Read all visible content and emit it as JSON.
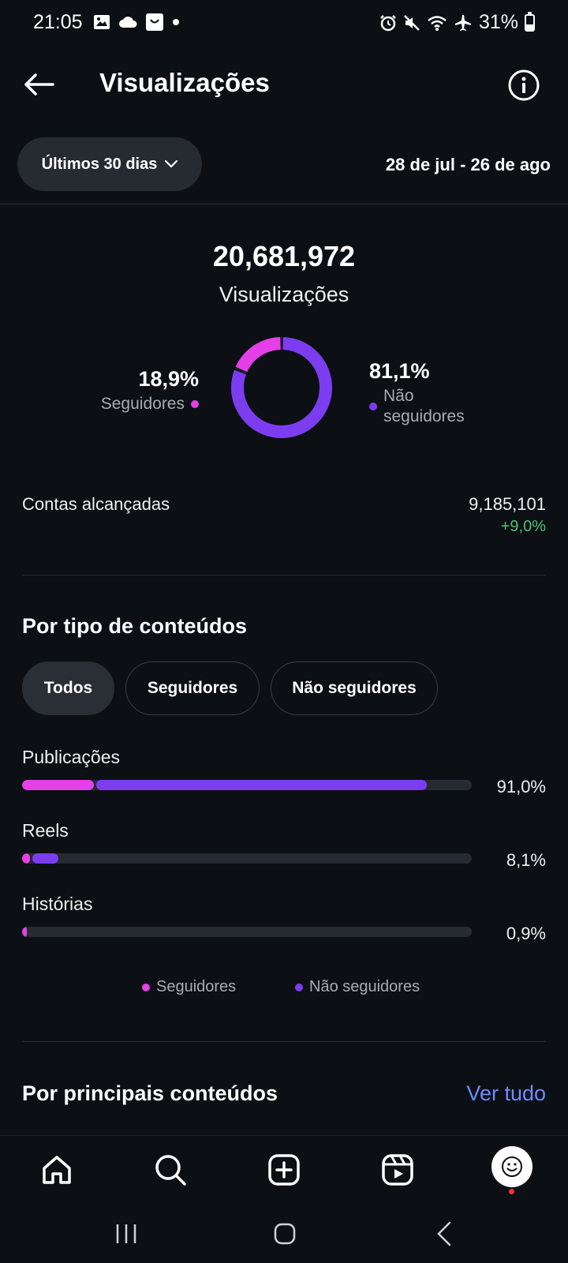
{
  "status_bar": {
    "time": "21:05",
    "battery": "31%",
    "left_icons": [
      "image-icon",
      "cloud-icon",
      "shopping-bag-icon",
      "dot-icon"
    ],
    "right_icons": [
      "alarm-icon",
      "mute-icon",
      "wifi-icon",
      "airplane-icon",
      "battery-icon"
    ]
  },
  "header": {
    "title": "Visualizações",
    "back_icon": "arrow-left-icon",
    "info_icon": "info-icon"
  },
  "filter": {
    "range_label": "Últimos 30 dias",
    "date_range": "28 de jul - 26 de ago"
  },
  "summary": {
    "total_value": "20,681,972",
    "total_label": "Visualizações",
    "followers_pct": "18,9%",
    "followers_label": "Seguidores",
    "non_followers_pct": "81,1%",
    "non_followers_label_line1": "Não",
    "non_followers_label_line2": "seguidores",
    "donut_followers_fraction": 0.189,
    "donut_non_followers_fraction": 0.811
  },
  "reach": {
    "label": "Contas alcançadas",
    "value": "9,185,101",
    "change": "+9,0%"
  },
  "content_types": {
    "title": "Por tipo de conteúdos",
    "tabs": [
      {
        "label": "Todos",
        "active": true
      },
      {
        "label": "Seguidores",
        "active": false
      },
      {
        "label": "Não seguidores",
        "active": false
      }
    ],
    "items": [
      {
        "label": "Publicações",
        "pct": "91,0%",
        "followers_fraction": 0.16,
        "non_followers_fraction": 0.74
      },
      {
        "label": "Reels",
        "pct": "8,1%",
        "followers_fraction": 0.018,
        "non_followers_fraction": 0.063
      },
      {
        "label": "Histórias",
        "pct": "0,9%",
        "followers_fraction": 0.009,
        "non_followers_fraction": 0.0
      }
    ],
    "legend_followers": "Seguidores",
    "legend_non_followers": "Não seguidores"
  },
  "top_content": {
    "title": "Por principais conteúdos",
    "see_all": "Ver tudo"
  },
  "colors": {
    "followers": "#e53fe8",
    "non_followers": "#7c3df0",
    "positive": "#4cc26a",
    "link": "#6f8bff",
    "background": "#0c0f14"
  },
  "bottom_nav": [
    "home-icon",
    "search-icon",
    "create-icon",
    "reels-icon",
    "profile-avatar"
  ]
}
